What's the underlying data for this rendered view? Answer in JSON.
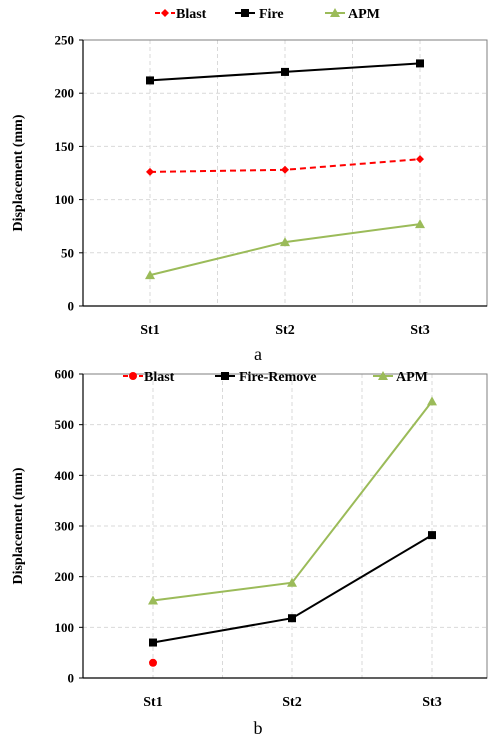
{
  "chart_data": [
    {
      "type": "line",
      "panel_label": "a",
      "categories": [
        "St1",
        "St2",
        "St3"
      ],
      "ylabel": "Displacement (mm)",
      "ylim": [
        0,
        250
      ],
      "yticks": [
        0,
        50,
        100,
        150,
        200,
        250
      ],
      "grid": true,
      "legend_position": "top",
      "series": [
        {
          "name": "Blast",
          "values": [
            126,
            128,
            138
          ],
          "color": "#ff0000",
          "dashed": true,
          "marker": "diamond"
        },
        {
          "name": "Fire",
          "values": [
            212,
            220,
            228
          ],
          "color": "#000000",
          "dashed": false,
          "marker": "square"
        },
        {
          "name": "APM",
          "values": [
            29,
            60,
            77
          ],
          "color": "#9bbb59",
          "dashed": false,
          "marker": "triangle"
        }
      ]
    },
    {
      "type": "line",
      "panel_label": "b",
      "categories": [
        "St1",
        "St2",
        "St3"
      ],
      "ylabel": "Displacement (mm)",
      "ylim": [
        0,
        600
      ],
      "yticks": [
        0,
        100,
        200,
        300,
        400,
        500,
        600
      ],
      "grid": true,
      "legend_position": "top",
      "series": [
        {
          "name": "Blast",
          "values": [
            30,
            null,
            null
          ],
          "color": "#ff0000",
          "dashed": true,
          "marker": "circle"
        },
        {
          "name": "Fire-Remove",
          "values": [
            70,
            118,
            282
          ],
          "color": "#000000",
          "dashed": false,
          "marker": "square"
        },
        {
          "name": "APM",
          "values": [
            153,
            188,
            546
          ],
          "color": "#9bbb59",
          "dashed": false,
          "marker": "triangle"
        }
      ]
    }
  ]
}
